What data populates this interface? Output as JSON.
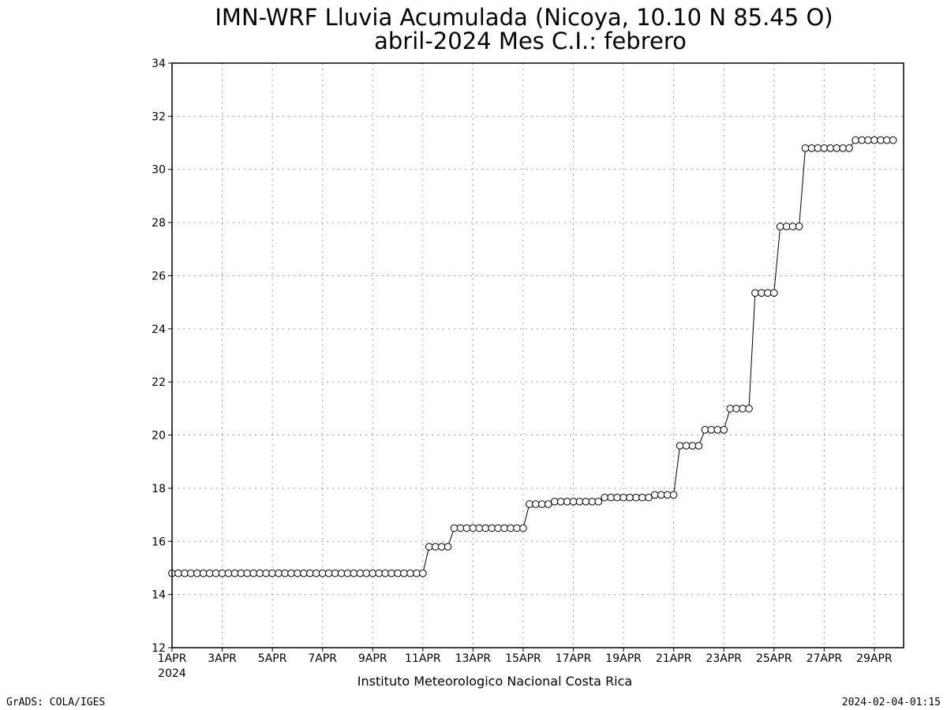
{
  "chart_data": {
    "type": "line",
    "title": "IMN-WRF  Lluvia Acumulada (Nicoya, 10.10  N 85.45  O)",
    "subtitle": "abril-2024 Mes C.I.: febrero",
    "ylim": [
      12,
      34
    ],
    "xlim": [
      0,
      29.167
    ],
    "y_ticks": [
      12,
      14,
      16,
      18,
      20,
      22,
      24,
      26,
      28,
      30,
      32,
      34
    ],
    "x_ticks": [
      {
        "pos": 0,
        "label": "1APR"
      },
      {
        "pos": 2,
        "label": "3APR"
      },
      {
        "pos": 4,
        "label": "5APR"
      },
      {
        "pos": 6,
        "label": "7APR"
      },
      {
        "pos": 8,
        "label": "9APR"
      },
      {
        "pos": 10,
        "label": "11APR"
      },
      {
        "pos": 12,
        "label": "13APR"
      },
      {
        "pos": 14,
        "label": "15APR"
      },
      {
        "pos": 16,
        "label": "17APR"
      },
      {
        "pos": 18,
        "label": "19APR"
      },
      {
        "pos": 20,
        "label": "21APR"
      },
      {
        "pos": 22,
        "label": "23APR"
      },
      {
        "pos": 24,
        "label": "25APR"
      },
      {
        "pos": 26,
        "label": "27APR"
      },
      {
        "pos": 28,
        "label": "29APR"
      }
    ],
    "x_year_label": "2024",
    "grid": true,
    "points_per_day": 4,
    "series": [
      {
        "values": [
          14.8,
          14.8,
          14.8,
          14.8,
          14.8,
          14.8,
          14.8,
          14.8,
          14.8,
          14.8,
          14.8,
          14.8,
          14.8,
          14.8,
          14.8,
          14.8,
          14.8,
          14.8,
          14.8,
          14.8,
          14.8,
          14.8,
          14.8,
          14.8,
          14.8,
          14.8,
          14.8,
          14.8,
          14.8,
          14.8,
          14.8,
          14.8,
          14.8,
          14.8,
          14.8,
          14.8,
          14.8,
          14.8,
          14.8,
          14.8,
          14.8,
          15.8,
          15.8,
          15.8,
          15.8,
          16.5,
          16.5,
          16.5,
          16.5,
          16.5,
          16.5,
          16.5,
          16.5,
          16.5,
          16.5,
          16.5,
          16.5,
          17.4,
          17.4,
          17.4,
          17.4,
          17.5,
          17.5,
          17.5,
          17.5,
          17.5,
          17.5,
          17.5,
          17.5,
          17.65,
          17.65,
          17.65,
          17.65,
          17.65,
          17.65,
          17.65,
          17.65,
          17.75,
          17.75,
          17.75,
          17.75,
          19.6,
          19.6,
          19.6,
          19.6,
          20.2,
          20.2,
          20.2,
          20.2,
          21.0,
          21.0,
          21.0,
          21.0,
          25.35,
          25.35,
          25.35,
          25.35,
          27.85,
          27.85,
          27.85,
          27.85,
          30.8,
          30.8,
          30.8,
          30.8,
          30.8,
          30.8,
          30.8,
          30.8,
          31.1,
          31.1,
          31.1,
          31.1,
          31.1,
          31.1,
          31.1
        ]
      }
    ]
  },
  "footer": {
    "institution": "Instituto Meteorologico Nacional Costa Rica",
    "software": "GrADS: COLA/IGES",
    "timestamp": "2024-02-04-01:15"
  }
}
